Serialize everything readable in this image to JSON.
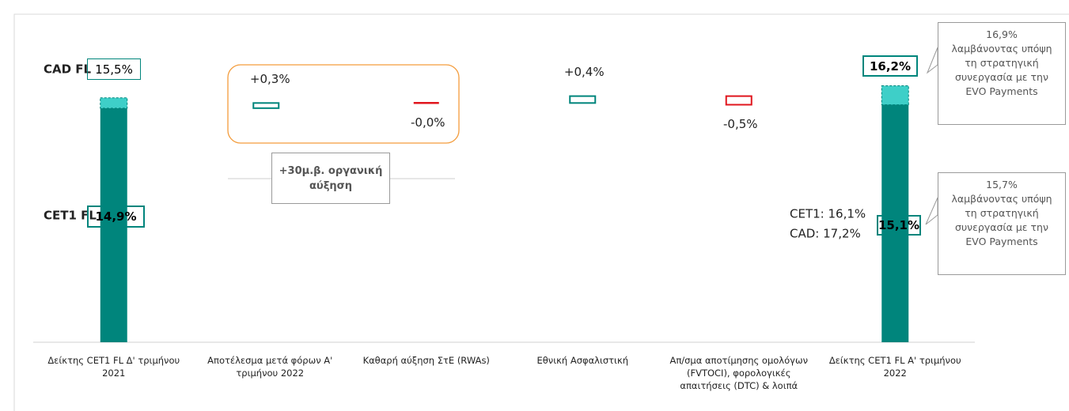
{
  "chart_data": {
    "type": "waterfall",
    "categories": [
      "Δείκτης CET1 FL Δ' τριμήνου 2021",
      "Αποτέλεσμα μετά φόρων Α' τριμήνου 2022",
      "Καθαρή αύξηση ΣτΕ (RWAs)",
      "Εθνική Ασφαλιστική",
      "Απ/σμα αποτίμησης ομολόγων (FVTOCI), φορολογικές απαιτήσεις (DTC) & λοιπά",
      "Δείκτης CET1 FL Α' τριμήνου 2022"
    ],
    "series": [
      {
        "name": "CET1 FL",
        "color": "#00857c",
        "values": [
          14.9,
          null,
          null,
          null,
          null,
          15.1
        ],
        "value_labels": [
          "14,9%",
          null,
          null,
          null,
          null,
          "15,1%"
        ]
      },
      {
        "name": "CAD FL",
        "color": "#3ecfc8",
        "values": [
          15.5,
          null,
          null,
          null,
          null,
          16.2
        ],
        "value_labels": [
          "15,5%",
          null,
          null,
          null,
          null,
          "16,2%"
        ]
      }
    ],
    "changes": {
      "values": [
        null,
        0.3,
        -0.0,
        0.4,
        -0.5,
        null
      ],
      "value_labels": [
        null,
        "+0,3%",
        "-0,0%",
        "+0,4%",
        "-0,5%",
        null
      ],
      "up_color": "#00857c",
      "down_color": "#e0161e"
    },
    "ylim": [
      1.3,
      16.5
    ],
    "annotations": {
      "organic": "+30μ.β. οργανική αύξηση",
      "final_cet1": "CET1: 16,1%",
      "final_cad": "CAD: 17,2%",
      "callout_cad": {
        "value": "16,9%",
        "text": "λαμβάνοντας υπόψη τη στρατηγική συνεργασία με την EVO Payments"
      },
      "callout_cet1": {
        "value": "15,7%",
        "text": "λαμβάνοντας υπόψη τη στρατηγική συνεργασία με την EVO Payments"
      }
    }
  }
}
